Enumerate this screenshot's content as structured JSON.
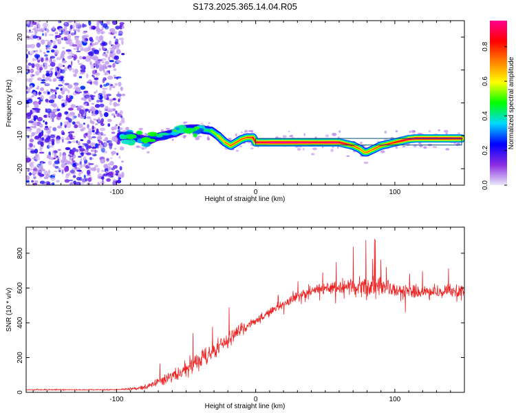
{
  "title": "S173.2025.365.14.04.R05",
  "chart_data": [
    {
      "type": "heatmap",
      "name": "spectrogram",
      "xlabel": "Height of straight line (km)",
      "ylabel": "Frequency (Hz)",
      "xlim": [
        -165,
        150
      ],
      "ylim": [
        -25,
        25
      ],
      "xticks": [
        -100,
        0,
        100
      ],
      "yticks": [
        20,
        10,
        0,
        -10,
        -20
      ],
      "xtick_labels": [
        "-100",
        "0",
        "100"
      ],
      "ytick_labels": [
        "20",
        "10",
        "0",
        "-10",
        "-20"
      ],
      "noise_region_x": [
        -165,
        -95
      ],
      "ridge": {
        "x": [
          -97,
          -92,
          -87,
          -82,
          -77,
          -72,
          -67,
          -62,
          -57,
          -52,
          -47,
          -42,
          -37,
          -32,
          -27,
          -22,
          -18,
          -14,
          -10,
          -6,
          -2,
          0,
          10,
          20,
          30,
          40,
          50,
          55,
          60,
          65,
          70,
          75,
          78,
          80,
          85,
          90,
          95,
          100,
          105,
          110,
          115,
          120,
          130,
          140,
          148
        ],
        "y": [
          -10,
          -10.2,
          -10.5,
          -11,
          -11.5,
          -10.5,
          -10,
          -9.5,
          -9,
          -8,
          -7.8,
          -7.8,
          -8.2,
          -8.5,
          -10,
          -12,
          -13,
          -12,
          -11,
          -10.5,
          -10.5,
          -12,
          -12,
          -12,
          -12,
          -12,
          -12,
          -12,
          -12,
          -12.5,
          -13,
          -14,
          -15,
          -15,
          -14,
          -13,
          -12.5,
          -12,
          -11.5,
          -11,
          -10.8,
          -10.8,
          -10.8,
          -10.8,
          -10.8
        ],
        "amplitude": [
          0.3,
          0.35,
          0.3,
          0.25,
          0.2,
          0.25,
          0.3,
          0.35,
          0.3,
          0.3,
          0.3,
          0.3,
          0.4,
          0.5,
          0.6,
          0.7,
          0.75,
          0.75,
          0.75,
          0.75,
          0.8,
          0.85,
          0.95,
          0.95,
          0.95,
          0.9,
          0.9,
          0.95,
          0.9,
          0.85,
          0.8,
          0.7,
          0.7,
          0.7,
          0.75,
          0.75,
          0.8,
          0.8,
          0.85,
          0.9,
          0.95,
          0.95,
          0.95,
          0.95,
          0.9
        ]
      }
    },
    {
      "type": "colorbar",
      "name": "amplitude-colorbar",
      "label": "Normalized spectral amplitude",
      "range": [
        0,
        0.95
      ],
      "ticks": [
        0.0,
        0.2,
        0.4,
        0.6,
        0.8
      ],
      "tick_labels": [
        "0.0",
        "0.2",
        "0.4",
        "0.6",
        "0.8"
      ],
      "colormap": [
        "#e9e9f9",
        "#8a2be2",
        "#0000ff",
        "#00d8ff",
        "#00ff00",
        "#ffff00",
        "#ff8000",
        "#ff0000",
        "#ff0090"
      ]
    },
    {
      "type": "line",
      "name": "snr-trace",
      "xlabel": "Height of straight line (km)",
      "ylabel": "SNR (10 * v/v)",
      "xlim": [
        -165,
        150
      ],
      "ylim": [
        0,
        950
      ],
      "xticks": [
        -100,
        0,
        100
      ],
      "yticks": [
        0,
        200,
        400,
        600,
        800
      ],
      "xtick_labels": [
        "-100",
        "0",
        "100"
      ],
      "ytick_labels": [
        "0",
        "200",
        "400",
        "600",
        "800"
      ],
      "color": "#ee2222",
      "envelope": {
        "x": [
          -165,
          -140,
          -120,
          -100,
          -90,
          -80,
          -70,
          -60,
          -50,
          -40,
          -30,
          -20,
          -10,
          0,
          10,
          20,
          30,
          40,
          50,
          60,
          70,
          80,
          90,
          100,
          110,
          120,
          130,
          140,
          150
        ],
        "mean": [
          15,
          15,
          15,
          15,
          20,
          30,
          55,
          90,
          130,
          180,
          240,
          300,
          360,
          410,
          460,
          510,
          550,
          585,
          600,
          605,
          605,
          610,
          600,
          590,
          580,
          580,
          580,
          580,
          580
        ],
        "spread": [
          6,
          6,
          6,
          7,
          15,
          25,
          45,
          70,
          90,
          100,
          95,
          80,
          60,
          50,
          45,
          40,
          50,
          55,
          60,
          70,
          100,
          130,
          100,
          80,
          75,
          70,
          70,
          70,
          70
        ]
      }
    }
  ]
}
